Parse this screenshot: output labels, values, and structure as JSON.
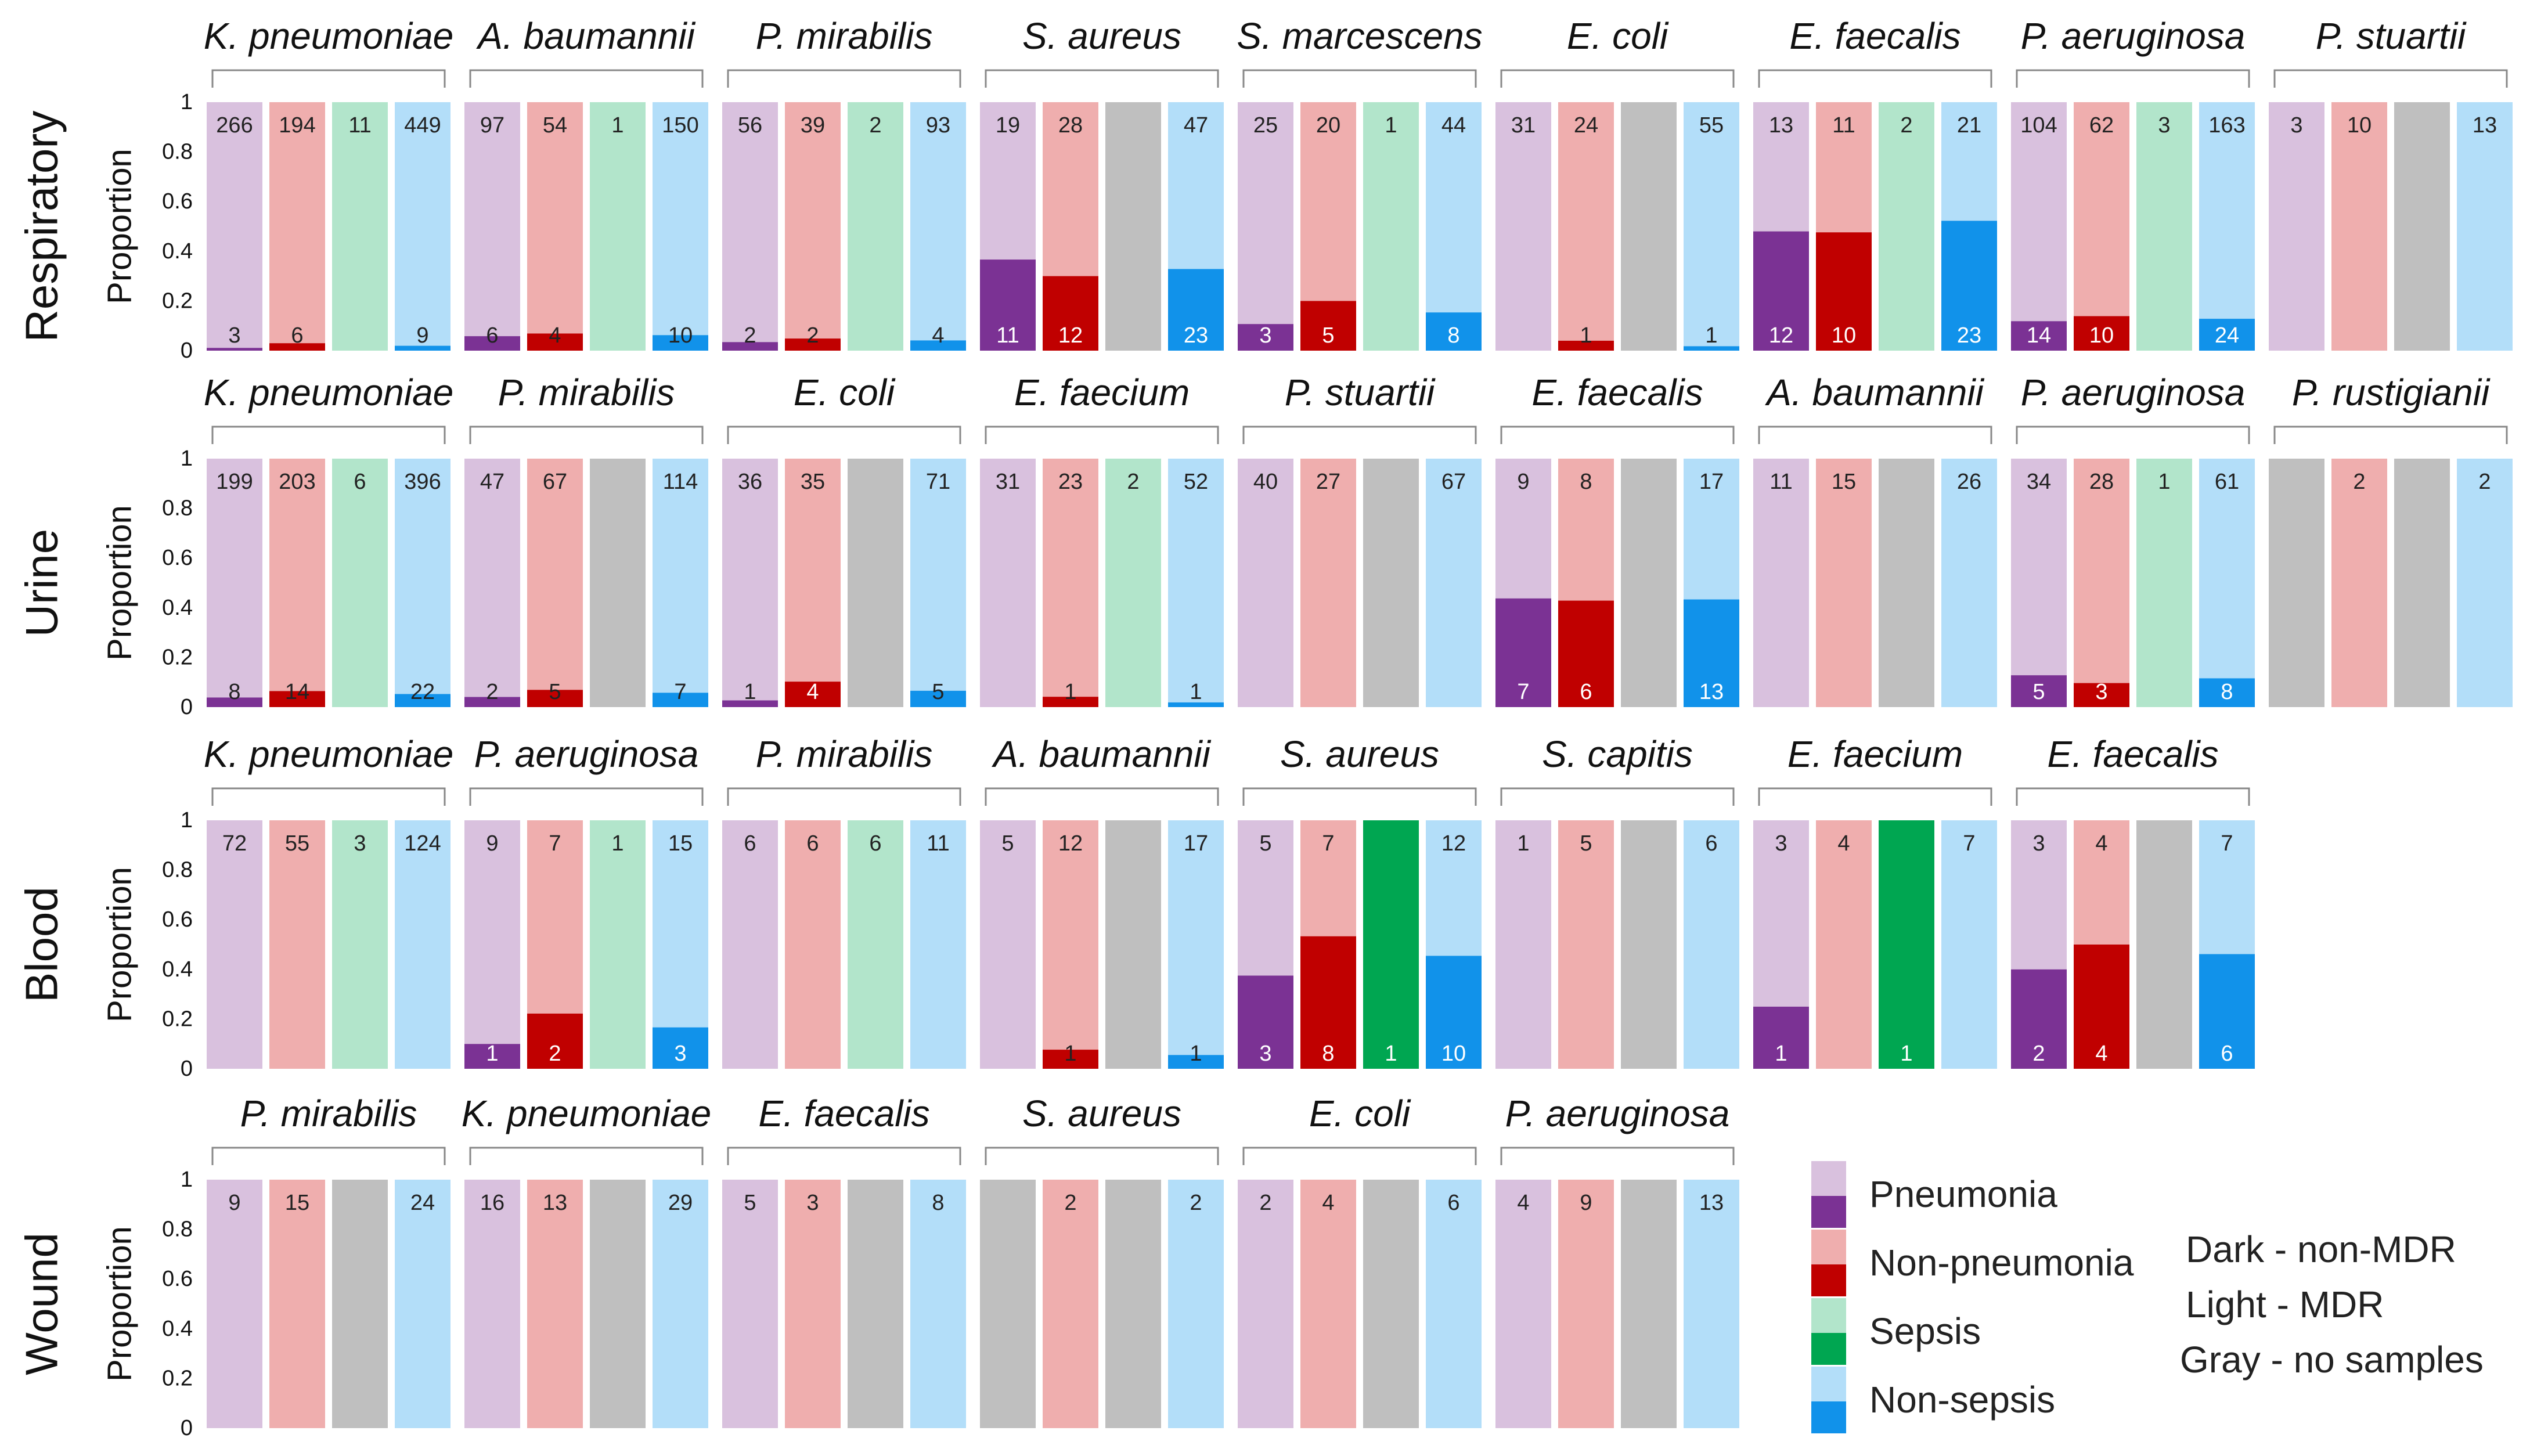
{
  "chart_data": {
    "type": "stacked-bar-facet",
    "y_label": "Proportion",
    "y_ticks": [
      "0",
      "0.2",
      "0.4",
      "0.6",
      "0.8",
      "1"
    ],
    "ylim": [
      0,
      1
    ],
    "bar_order": [
      "Pneumonia",
      "Non-pneumonia",
      "Sepsis",
      "Non-sepsis"
    ],
    "colors": {
      "Pneumonia": {
        "light": "#d9c1de",
        "dark": "#7b3294"
      },
      "Non-pneumonia": {
        "light": "#efaeae",
        "dark": "#c00000"
      },
      "Sepsis": {
        "light": "#b2e5cb",
        "dark": "#00a651"
      },
      "Non-sepsis": {
        "light": "#b3def9",
        "dark": "#1192ea"
      },
      "no_samples": "#bfbfbf"
    },
    "rows": [
      {
        "source": "Respiratory",
        "panels": [
          {
            "species": "K. pneumoniae",
            "bars": [
              {
                "mdr": 266,
                "non_mdr": 3
              },
              {
                "mdr": 194,
                "non_mdr": 6
              },
              {
                "mdr": 11,
                "non_mdr": null
              },
              {
                "mdr": 449,
                "non_mdr": 9
              }
            ]
          },
          {
            "species": "A. baumannii",
            "bars": [
              {
                "mdr": 97,
                "non_mdr": 6
              },
              {
                "mdr": 54,
                "non_mdr": 4
              },
              {
                "mdr": 1,
                "non_mdr": null
              },
              {
                "mdr": 150,
                "non_mdr": 10
              }
            ]
          },
          {
            "species": "P. mirabilis",
            "bars": [
              {
                "mdr": 56,
                "non_mdr": 2
              },
              {
                "mdr": 39,
                "non_mdr": 2
              },
              {
                "mdr": 2,
                "non_mdr": null
              },
              {
                "mdr": 93,
                "non_mdr": 4
              }
            ]
          },
          {
            "species": "S. aureus",
            "bars": [
              {
                "mdr": 19,
                "non_mdr": 11
              },
              {
                "mdr": 28,
                "non_mdr": 12
              },
              {
                "mdr": null,
                "non_mdr": null
              },
              {
                "mdr": 47,
                "non_mdr": 23
              }
            ]
          },
          {
            "species": "S. marcescens",
            "bars": [
              {
                "mdr": 25,
                "non_mdr": 3
              },
              {
                "mdr": 20,
                "non_mdr": 5
              },
              {
                "mdr": 1,
                "non_mdr": null
              },
              {
                "mdr": 44,
                "non_mdr": 8
              }
            ]
          },
          {
            "species": "E. coli",
            "bars": [
              {
                "mdr": 31,
                "non_mdr": null
              },
              {
                "mdr": 24,
                "non_mdr": 1
              },
              {
                "mdr": null,
                "non_mdr": null
              },
              {
                "mdr": 55,
                "non_mdr": 1
              }
            ]
          },
          {
            "species": "E. faecalis",
            "bars": [
              {
                "mdr": 13,
                "non_mdr": 12
              },
              {
                "mdr": 11,
                "non_mdr": 10
              },
              {
                "mdr": 2,
                "non_mdr": null
              },
              {
                "mdr": 21,
                "non_mdr": 23
              }
            ]
          },
          {
            "species": "P. aeruginosa",
            "bars": [
              {
                "mdr": 104,
                "non_mdr": 14
              },
              {
                "mdr": 62,
                "non_mdr": 10
              },
              {
                "mdr": 3,
                "non_mdr": null
              },
              {
                "mdr": 163,
                "non_mdr": 24
              }
            ]
          },
          {
            "species": "P. stuartii",
            "bars": [
              {
                "mdr": 3,
                "non_mdr": null
              },
              {
                "mdr": 10,
                "non_mdr": null
              },
              {
                "mdr": null,
                "non_mdr": null
              },
              {
                "mdr": 13,
                "non_mdr": null
              }
            ]
          }
        ]
      },
      {
        "source": "Urine",
        "panels": [
          {
            "species": "K. pneumoniae",
            "bars": [
              {
                "mdr": 199,
                "non_mdr": 8
              },
              {
                "mdr": 203,
                "non_mdr": 14
              },
              {
                "mdr": 6,
                "non_mdr": null
              },
              {
                "mdr": 396,
                "non_mdr": 22
              }
            ]
          },
          {
            "species": "P. mirabilis",
            "bars": [
              {
                "mdr": 47,
                "non_mdr": 2
              },
              {
                "mdr": 67,
                "non_mdr": 5
              },
              {
                "mdr": null,
                "non_mdr": null
              },
              {
                "mdr": 114,
                "non_mdr": 7
              }
            ]
          },
          {
            "species": "E. coli",
            "bars": [
              {
                "mdr": 36,
                "non_mdr": 1
              },
              {
                "mdr": 35,
                "non_mdr": 4
              },
              {
                "mdr": null,
                "non_mdr": null
              },
              {
                "mdr": 71,
                "non_mdr": 5
              }
            ]
          },
          {
            "species": "E. faecium",
            "bars": [
              {
                "mdr": 31,
                "non_mdr": null
              },
              {
                "mdr": 23,
                "non_mdr": 1
              },
              {
                "mdr": 2,
                "non_mdr": null
              },
              {
                "mdr": 52,
                "non_mdr": 1
              }
            ]
          },
          {
            "species": "P. stuartii",
            "bars": [
              {
                "mdr": 40,
                "non_mdr": null
              },
              {
                "mdr": 27,
                "non_mdr": null
              },
              {
                "mdr": null,
                "non_mdr": null
              },
              {
                "mdr": 67,
                "non_mdr": null
              }
            ]
          },
          {
            "species": "E. faecalis",
            "bars": [
              {
                "mdr": 9,
                "non_mdr": 7
              },
              {
                "mdr": 8,
                "non_mdr": 6
              },
              {
                "mdr": null,
                "non_mdr": null
              },
              {
                "mdr": 17,
                "non_mdr": 13
              }
            ]
          },
          {
            "species": "A. baumannii",
            "bars": [
              {
                "mdr": 11,
                "non_mdr": null
              },
              {
                "mdr": 15,
                "non_mdr": null
              },
              {
                "mdr": null,
                "non_mdr": null
              },
              {
                "mdr": 26,
                "non_mdr": null
              }
            ]
          },
          {
            "species": "P. aeruginosa",
            "bars": [
              {
                "mdr": 34,
                "non_mdr": 5
              },
              {
                "mdr": 28,
                "non_mdr": 3
              },
              {
                "mdr": 1,
                "non_mdr": null
              },
              {
                "mdr": 61,
                "non_mdr": 8
              }
            ]
          },
          {
            "species": "P. rustigianii",
            "bars": [
              {
                "mdr": null,
                "non_mdr": null
              },
              {
                "mdr": 2,
                "non_mdr": null
              },
              {
                "mdr": null,
                "non_mdr": null
              },
              {
                "mdr": 2,
                "non_mdr": null
              }
            ]
          }
        ]
      },
      {
        "source": "Blood",
        "panels": [
          {
            "species": "K. pneumoniae",
            "bars": [
              {
                "mdr": 72,
                "non_mdr": null
              },
              {
                "mdr": 55,
                "non_mdr": null
              },
              {
                "mdr": 3,
                "non_mdr": null
              },
              {
                "mdr": 124,
                "non_mdr": null
              }
            ]
          },
          {
            "species": "P. aeruginosa",
            "bars": [
              {
                "mdr": 9,
                "non_mdr": 1
              },
              {
                "mdr": 7,
                "non_mdr": 2
              },
              {
                "mdr": 1,
                "non_mdr": null
              },
              {
                "mdr": 15,
                "non_mdr": 3
              }
            ]
          },
          {
            "species": "P. mirabilis",
            "bars": [
              {
                "mdr": 6,
                "non_mdr": null
              },
              {
                "mdr": 6,
                "non_mdr": null
              },
              {
                "mdr": 6,
                "non_mdr": null
              },
              {
                "mdr": 11,
                "non_mdr": null
              }
            ]
          },
          {
            "species": "A. baumannii",
            "bars": [
              {
                "mdr": 5,
                "non_mdr": null
              },
              {
                "mdr": 12,
                "non_mdr": 1
              },
              {
                "mdr": null,
                "non_mdr": null
              },
              {
                "mdr": 17,
                "non_mdr": 1
              }
            ]
          },
          {
            "species": "S. aureus",
            "bars": [
              {
                "mdr": 5,
                "non_mdr": 3
              },
              {
                "mdr": 7,
                "non_mdr": 8
              },
              {
                "mdr": null,
                "non_mdr": 1
              },
              {
                "mdr": 12,
                "non_mdr": 10
              }
            ]
          },
          {
            "species": "S. capitis",
            "bars": [
              {
                "mdr": 1,
                "non_mdr": null
              },
              {
                "mdr": 5,
                "non_mdr": null
              },
              {
                "mdr": null,
                "non_mdr": null
              },
              {
                "mdr": 6,
                "non_mdr": null
              }
            ]
          },
          {
            "species": "E. faecium",
            "bars": [
              {
                "mdr": 3,
                "non_mdr": 1
              },
              {
                "mdr": 4,
                "non_mdr": null
              },
              {
                "mdr": null,
                "non_mdr": 1
              },
              {
                "mdr": 7,
                "non_mdr": null
              }
            ]
          },
          {
            "species": "E. faecalis",
            "bars": [
              {
                "mdr": 3,
                "non_mdr": 2
              },
              {
                "mdr": 4,
                "non_mdr": 4
              },
              {
                "mdr": null,
                "non_mdr": null
              },
              {
                "mdr": 7,
                "non_mdr": 6
              }
            ]
          }
        ]
      },
      {
        "source": "Wound",
        "panels": [
          {
            "species": "P. mirabilis",
            "bars": [
              {
                "mdr": 9,
                "non_mdr": null
              },
              {
                "mdr": 15,
                "non_mdr": null
              },
              {
                "mdr": null,
                "non_mdr": null
              },
              {
                "mdr": 24,
                "non_mdr": null
              }
            ]
          },
          {
            "species": "K. pneumoniae",
            "bars": [
              {
                "mdr": 16,
                "non_mdr": null
              },
              {
                "mdr": 13,
                "non_mdr": null
              },
              {
                "mdr": null,
                "non_mdr": null
              },
              {
                "mdr": 29,
                "non_mdr": null
              }
            ]
          },
          {
            "species": "E. faecalis",
            "bars": [
              {
                "mdr": 5,
                "non_mdr": null
              },
              {
                "mdr": 3,
                "non_mdr": null
              },
              {
                "mdr": null,
                "non_mdr": null
              },
              {
                "mdr": 8,
                "non_mdr": null
              }
            ]
          },
          {
            "species": "S. aureus",
            "bars": [
              {
                "mdr": null,
                "non_mdr": null
              },
              {
                "mdr": 2,
                "non_mdr": null
              },
              {
                "mdr": null,
                "non_mdr": null
              },
              {
                "mdr": 2,
                "non_mdr": null
              }
            ]
          },
          {
            "species": "E. coli",
            "bars": [
              {
                "mdr": 2,
                "non_mdr": null
              },
              {
                "mdr": 4,
                "non_mdr": null
              },
              {
                "mdr": null,
                "non_mdr": null
              },
              {
                "mdr": 6,
                "non_mdr": null
              }
            ]
          },
          {
            "species": "P. aeruginosa",
            "bars": [
              {
                "mdr": 4,
                "non_mdr": null
              },
              {
                "mdr": 9,
                "non_mdr": null
              },
              {
                "mdr": null,
                "non_mdr": null
              },
              {
                "mdr": 13,
                "non_mdr": null
              }
            ]
          }
        ]
      }
    ],
    "legend": {
      "items": [
        "Pneumonia",
        "Non-pneumonia",
        "Sepsis",
        "Non-sepsis"
      ],
      "notes": [
        "Dark - non-MDR",
        "Light - MDR",
        "Gray - no samples"
      ]
    }
  }
}
